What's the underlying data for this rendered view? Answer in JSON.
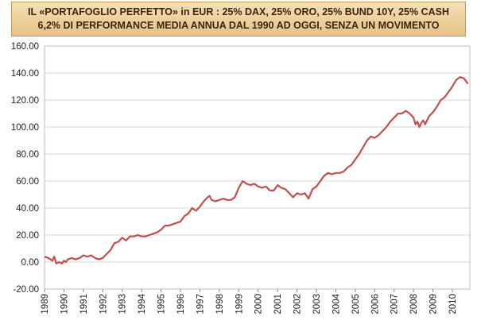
{
  "title_line1": "IL «PORTAFOGLIO PERFETTO» in EUR : 25% DAX, 25% ORO, 25% BUND 10Y, 25% CASH",
  "title_line2": "6,2% DI PERFORMANCE MEDIA ANNUA DAL 1990 AD OGGI, SENZA UN MOVIMENTO",
  "chart_data": {
    "type": "line",
    "title": "IL «PORTAFOGLIO PERFETTO» in EUR : 25% DAX, 25% ORO, 25% BUND 10Y, 25% CASH",
    "subtitle": "6,2% DI PERFORMANCE MEDIA ANNUA DAL 1990 AD OGGI, SENZA UN MOVIMENTO",
    "xlabel": "",
    "ylabel": "",
    "ylim": [
      -20,
      160
    ],
    "yticks": [
      "160.00",
      "140.00",
      "120.00",
      "100.00",
      "80.00",
      "60.00",
      "40.00",
      "20.00",
      "0.00",
      "-20.00"
    ],
    "xticks": [
      "1989",
      "1990",
      "1991",
      "1992",
      "1993",
      "1994",
      "1995",
      "1996",
      "1997",
      "1998",
      "1999",
      "2000",
      "2001",
      "2002",
      "2003",
      "2004",
      "2005",
      "2006",
      "2007",
      "2008",
      "2009",
      "2010"
    ],
    "grid": true,
    "line_color": "#c0504d",
    "series": [
      {
        "x": [
          1989.0,
          1989.2,
          1989.4,
          1989.5,
          1989.6,
          1989.75,
          1989.9,
          1990.0,
          1990.1,
          1990.2,
          1990.4,
          1990.6,
          1990.8,
          1991.0,
          1991.2,
          1991.4,
          1991.6,
          1991.8,
          1992.0,
          1992.2,
          1992.4,
          1992.6,
          1992.8,
          1993.0,
          1993.2,
          1993.4,
          1993.6,
          1993.8,
          1994.0,
          1994.2,
          1994.4,
          1994.6,
          1994.8,
          1995.0,
          1995.2,
          1995.4,
          1995.6,
          1995.8,
          1996.0,
          1996.2,
          1996.4,
          1996.6,
          1996.8,
          1997.0,
          1997.2,
          1997.4,
          1997.5,
          1997.6,
          1997.8,
          1998.0,
          1998.2,
          1998.4,
          1998.6,
          1998.8,
          1999.0,
          1999.2,
          1999.4,
          1999.6,
          1999.8,
          2000.0,
          2000.2,
          2000.4,
          2000.6,
          2000.8,
          2001.0,
          2001.2,
          2001.4,
          2001.6,
          2001.8,
          2002.0,
          2002.2,
          2002.4,
          2002.6,
          2002.8,
          2003.0,
          2003.2,
          2003.4,
          2003.6,
          2003.8,
          2004.0,
          2004.2,
          2004.4,
          2004.6,
          2004.8,
          2005.0,
          2005.2,
          2005.4,
          2005.6,
          2005.8,
          2006.0,
          2006.2,
          2006.4,
          2006.6,
          2006.8,
          2007.0,
          2007.2,
          2007.4,
          2007.6,
          2007.8,
          2008.0,
          2008.1,
          2008.2,
          2008.3,
          2008.4,
          2008.5,
          2008.6,
          2008.8,
          2009.0,
          2009.2,
          2009.4,
          2009.6,
          2009.8,
          2010.0,
          2010.2,
          2010.4,
          2010.6,
          2010.8
        ],
        "y": [
          4,
          3,
          1,
          4,
          -1,
          0,
          -1,
          1,
          0,
          2,
          3,
          2,
          3,
          5,
          4,
          5,
          3,
          2,
          3,
          6,
          9,
          14,
          15,
          18,
          16,
          19,
          19,
          20,
          19,
          19,
          20,
          21,
          22,
          24,
          27,
          27,
          28,
          29,
          30,
          34,
          36,
          40,
          38,
          41,
          45,
          48,
          49,
          46,
          45,
          46,
          47,
          46,
          46,
          48,
          55,
          60,
          58,
          57,
          58,
          56,
          55,
          56,
          53,
          53,
          57,
          55,
          54,
          51,
          48,
          51,
          50,
          51,
          47,
          54,
          56,
          60,
          64,
          66,
          65,
          66,
          66,
          67,
          70,
          72,
          76,
          80,
          85,
          90,
          93,
          92,
          94,
          97,
          100,
          104,
          107,
          110,
          110,
          112,
          110,
          107,
          102,
          104,
          100,
          103,
          105,
          102,
          108,
          111,
          115,
          120,
          122,
          126,
          130,
          135,
          137,
          136,
          132
        ]
      }
    ]
  }
}
